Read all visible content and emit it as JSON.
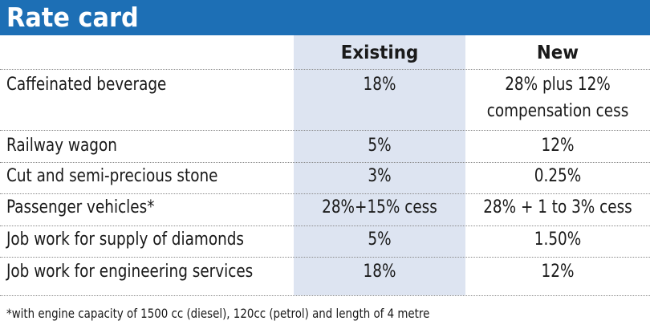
{
  "title": "Rate card",
  "columns": {
    "existing": "Existing",
    "new": "New"
  },
  "rows": [
    {
      "label": "Caffeinated beverage",
      "existing": "18%",
      "new_line1": "28% plus 12%",
      "new_line2": "compensation cess"
    },
    {
      "label": "Railway wagon",
      "existing": "5%",
      "new": "12%"
    },
    {
      "label": "Cut and semi-precious stone",
      "existing": "3%",
      "new": "0.25%"
    },
    {
      "label": "Passenger vehicles*",
      "existing": "28%+15% cess",
      "new": "28% + 1 to 3% cess"
    },
    {
      "label": "Job work for supply of diamonds",
      "existing": "5%",
      "new": "1.50%"
    },
    {
      "label": "Job work for engineering services",
      "existing": "18%",
      "new": "12%"
    }
  ],
  "footnote": "*with engine capacity of 1500 cc (diesel), 120cc  (petrol) and length of 4 metre",
  "colors": {
    "header_bg": "#1d6fb5",
    "existing_column_bg": "#dde4f1"
  }
}
